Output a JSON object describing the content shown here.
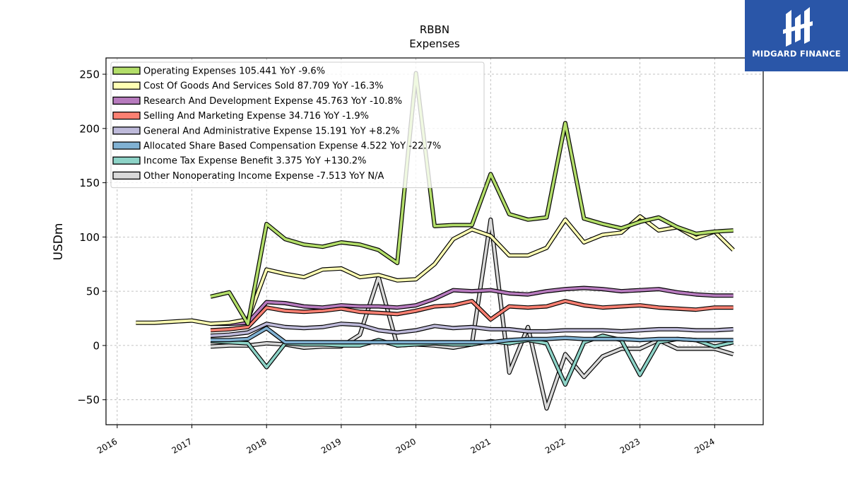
{
  "colors": {
    "brand": "#2a56a8",
    "grid": "#b0b0b0"
  },
  "logo": {
    "text": "MIDGARD FINANCE"
  },
  "chart_data": {
    "type": "line",
    "title": "RBBN",
    "subtitle": "Expenses",
    "ylabel": "USDm",
    "xlabel": "",
    "xlim": [
      2015.85,
      2024.65
    ],
    "ylim": [
      -73,
      265
    ],
    "grid": true,
    "legend_position": "top-left",
    "x_ticks": [
      {
        "value": 2016,
        "label": "2016"
      },
      {
        "value": 2017,
        "label": "2017"
      },
      {
        "value": 2018,
        "label": "2018"
      },
      {
        "value": 2019,
        "label": "2019"
      },
      {
        "value": 2020,
        "label": "2020"
      },
      {
        "value": 2021,
        "label": "2021"
      },
      {
        "value": 2022,
        "label": "2022"
      },
      {
        "value": 2023,
        "label": "2023"
      },
      {
        "value": 2024,
        "label": "2024"
      }
    ],
    "y_ticks": [
      {
        "value": -50,
        "label": "−50"
      },
      {
        "value": 0,
        "label": "0"
      },
      {
        "value": 50,
        "label": "50"
      },
      {
        "value": 100,
        "label": "100"
      },
      {
        "value": 150,
        "label": "150"
      },
      {
        "value": 200,
        "label": "200"
      },
      {
        "value": 250,
        "label": "250"
      }
    ],
    "series": [
      {
        "name": "Other Nonoperating Income Expense",
        "legend": "Other Nonoperating Income Expense  -7.513 YoY N/A",
        "color": "#d9d9d9",
        "x": [
          2017.25,
          2017.5,
          2017.75,
          2018.0,
          2018.25,
          2018.5,
          2018.75,
          2019.0,
          2019.25,
          2019.5,
          2019.75,
          2020.0,
          2020.25,
          2020.5,
          2020.75,
          2021.0,
          2021.25,
          2021.5,
          2021.75,
          2022.0,
          2022.25,
          2022.5,
          2022.75,
          2023.0,
          2023.25,
          2023.5,
          2023.75,
          2024.0,
          2024.25
        ],
        "values": [
          -1,
          0,
          0,
          2,
          1,
          -2,
          -1,
          -1,
          10,
          63,
          0,
          1,
          0,
          -2,
          1,
          116,
          -25,
          17,
          -58,
          -8,
          -29,
          -10,
          -3,
          -3,
          5,
          -3,
          -3,
          -3,
          -8
        ]
      },
      {
        "name": "Income Tax Expense Benefit",
        "legend": "Income Tax Expense Benefit  3.375 YoY +130.2%",
        "color": "#8dd3c7",
        "x": [
          2017.25,
          2017.5,
          2017.75,
          2018.0,
          2018.25,
          2018.5,
          2018.75,
          2019.0,
          2019.25,
          2019.5,
          2019.75,
          2020.0,
          2020.25,
          2020.5,
          2020.75,
          2021.0,
          2021.25,
          2021.5,
          2021.75,
          2022.0,
          2022.25,
          2022.5,
          2022.75,
          2023.0,
          2023.25,
          2023.5,
          2023.75,
          2024.0,
          2024.25
        ],
        "values": [
          4,
          3,
          2,
          -20,
          2,
          1,
          1,
          0,
          0,
          5,
          0,
          1,
          2,
          1,
          1,
          4,
          2,
          5,
          2,
          -36,
          3,
          9,
          5,
          -27,
          3,
          6,
          5,
          -1,
          3
        ]
      },
      {
        "name": "Allocated Share Based Compensation Expense",
        "legend": "Allocated Share Based Compensation Expense  4.522 YoY -22.7%",
        "color": "#80b1d3",
        "x": [
          2017.25,
          2017.5,
          2017.75,
          2018.0,
          2018.25,
          2018.5,
          2018.75,
          2019.0,
          2019.25,
          2019.5,
          2019.75,
          2020.0,
          2020.25,
          2020.5,
          2020.75,
          2021.0,
          2021.25,
          2021.5,
          2021.75,
          2022.0,
          2022.25,
          2022.5,
          2022.75,
          2023.0,
          2023.25,
          2023.5,
          2023.75,
          2024.0,
          2024.25
        ],
        "values": [
          5,
          5,
          6,
          16,
          3,
          3,
          3,
          3,
          3,
          3,
          3,
          3,
          3,
          3,
          3,
          3,
          5,
          6,
          6,
          7,
          6,
          6,
          6,
          5,
          6,
          6,
          5,
          5,
          5
        ]
      },
      {
        "name": "General And Administrative Expense",
        "legend": "General And Administrative Expense  15.191 YoY +8.2%",
        "color": "#bebada",
        "x": [
          2017.25,
          2017.5,
          2017.75,
          2018.0,
          2018.25,
          2018.5,
          2018.75,
          2019.0,
          2019.25,
          2019.5,
          2019.75,
          2020.0,
          2020.25,
          2020.5,
          2020.75,
          2021.0,
          2021.25,
          2021.5,
          2021.75,
          2022.0,
          2022.25,
          2022.5,
          2022.75,
          2023.0,
          2023.25,
          2023.5,
          2023.75,
          2024.0,
          2024.25
        ],
        "values": [
          9,
          10,
          12,
          20,
          17,
          16,
          17,
          20,
          19,
          14,
          12,
          14,
          18,
          16,
          17,
          15,
          15,
          13,
          13,
          14,
          14,
          14,
          13,
          14,
          15,
          15,
          14,
          14,
          15
        ]
      },
      {
        "name": "Selling And Marketing Expense",
        "legend": "Selling And Marketing Expense  34.716 YoY -1.9%",
        "color": "#fb8072",
        "x": [
          2017.25,
          2017.5,
          2017.75,
          2018.0,
          2018.25,
          2018.5,
          2018.75,
          2019.0,
          2019.25,
          2019.5,
          2019.75,
          2020.0,
          2020.25,
          2020.5,
          2020.75,
          2021.0,
          2021.25,
          2021.5,
          2021.75,
          2022.0,
          2022.25,
          2022.5,
          2022.75,
          2023.0,
          2023.25,
          2023.5,
          2023.75,
          2024.0,
          2024.25
        ],
        "values": [
          14,
          15,
          17,
          35,
          32,
          31,
          32,
          34,
          31,
          30,
          29,
          32,
          36,
          37,
          41,
          24,
          36,
          35,
          36,
          41,
          37,
          35,
          36,
          37,
          35,
          34,
          33,
          35,
          35
        ]
      },
      {
        "name": "Research And Development Expense",
        "legend": "Research And Development Expense  45.763 YoY -10.8%",
        "color": "#b77bbe",
        "x": [
          2017.25,
          2017.5,
          2017.75,
          2018.0,
          2018.25,
          2018.5,
          2018.75,
          2019.0,
          2019.25,
          2019.5,
          2019.75,
          2020.0,
          2020.25,
          2020.5,
          2020.75,
          2021.0,
          2021.25,
          2021.5,
          2021.75,
          2022.0,
          2022.25,
          2022.5,
          2022.75,
          2023.0,
          2023.25,
          2023.5,
          2023.75,
          2024.0,
          2024.25
        ],
        "values": [
          20,
          20,
          21,
          40,
          39,
          36,
          35,
          37,
          36,
          36,
          35,
          37,
          43,
          51,
          50,
          51,
          48,
          47,
          50,
          52,
          53,
          52,
          50,
          51,
          52,
          49,
          47,
          46,
          46
        ]
      },
      {
        "name": "Cost Of Goods And Services Sold",
        "legend": "Cost Of Goods And Services Sold  87.709 YoY -16.3%",
        "color": "#ffffb3",
        "x": [
          2016.25,
          2016.5,
          2016.75,
          2017.0,
          2017.25,
          2017.5,
          2017.75,
          2018.0,
          2018.25,
          2018.5,
          2018.75,
          2019.0,
          2019.25,
          2019.5,
          2019.75,
          2020.0,
          2020.25,
          2020.5,
          2020.75,
          2021.0,
          2021.25,
          2021.5,
          2021.75,
          2022.0,
          2022.25,
          2022.5,
          2022.75,
          2023.0,
          2023.25,
          2023.5,
          2023.75,
          2024.0,
          2024.25
        ],
        "values": [
          21,
          21,
          22,
          23,
          20,
          21,
          24,
          70,
          66,
          63,
          70,
          71,
          63,
          65,
          60,
          61,
          75,
          98,
          107,
          101,
          83,
          83,
          90,
          116,
          95,
          102,
          104,
          119,
          106,
          109,
          99,
          105,
          88
        ]
      },
      {
        "name": "Operating Expenses",
        "legend": "Operating Expenses  105.441 YoY -9.6%",
        "color": "#b3de69",
        "x": [
          2017.25,
          2017.5,
          2017.75,
          2018.0,
          2018.25,
          2018.5,
          2018.75,
          2019.0,
          2019.25,
          2019.5,
          2019.75,
          2020.0,
          2020.25,
          2020.5,
          2020.75,
          2021.0,
          2021.25,
          2021.5,
          2021.75,
          2022.0,
          2022.25,
          2022.5,
          2022.75,
          2023.0,
          2023.25,
          2023.5,
          2023.75,
          2024.0,
          2024.25
        ],
        "values": [
          45,
          49,
          20,
          112,
          98,
          93,
          91,
          95,
          93,
          88,
          76,
          251,
          110,
          111,
          111,
          158,
          121,
          116,
          118,
          205,
          117,
          112,
          108,
          114,
          118,
          109,
          103,
          105,
          106
        ]
      }
    ],
    "legend_order": [
      "Operating Expenses",
      "Cost Of Goods And Services Sold",
      "Research And Development Expense",
      "Selling And Marketing Expense",
      "General And Administrative Expense",
      "Allocated Share Based Compensation Expense",
      "Income Tax Expense Benefit",
      "Other Nonoperating Income Expense"
    ]
  }
}
